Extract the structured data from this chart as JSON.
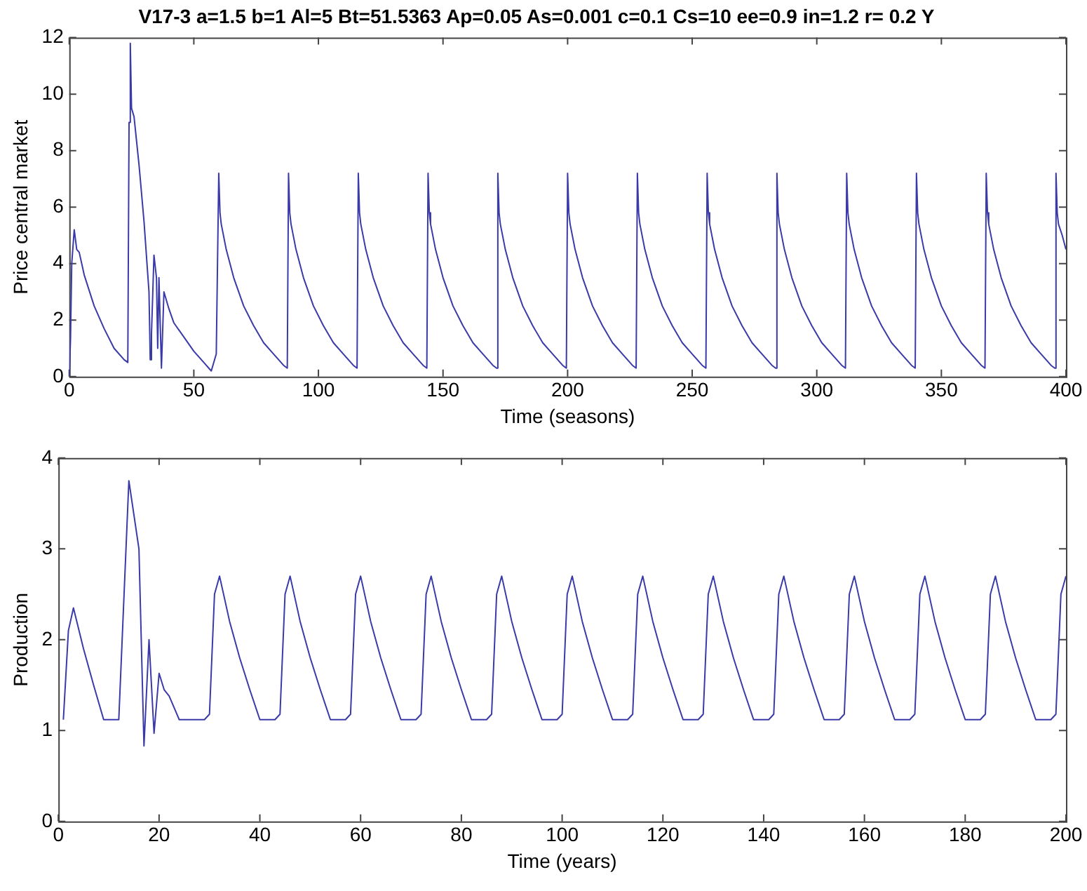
{
  "chart_data": [
    {
      "type": "line",
      "title": "V17-3 a=1.5 b=1 Al=5 Bt=51.5363 Ap=0.05 As=0.001 c=0.1 Cs=10 ee=0.9 in=1.2 r= 0.2 Y",
      "xlabel": "Time (seasons)",
      "ylabel": "Price central market",
      "xlim": [
        0,
        400
      ],
      "ylim": [
        0,
        12
      ],
      "xticks": [
        0,
        50,
        100,
        150,
        200,
        250,
        300,
        350,
        400
      ],
      "yticks": [
        0,
        2,
        4,
        6,
        8,
        10,
        12
      ],
      "grid": false,
      "legend": false,
      "marker": "none",
      "line_style": "solid",
      "series": [
        {
          "color": "#3a3aa8",
          "x": [
            0,
            0.5,
            1,
            2,
            3,
            4,
            6,
            10,
            14,
            18,
            22,
            23.5,
            24,
            24.5,
            25,
            26,
            28,
            30,
            32,
            32.5,
            33,
            34,
            35,
            35.5,
            36,
            37,
            38,
            40,
            42,
            46,
            50,
            54,
            57,
            59,
            60,
            60.5,
            61,
            63,
            66,
            70,
            74,
            78,
            82,
            86,
            87.5,
            88,
            88.5,
            89,
            91,
            94,
            98,
            102,
            106,
            110,
            114,
            115.5,
            116,
            116.5,
            117,
            119,
            122,
            126,
            130,
            134,
            138,
            142,
            143.5,
            144,
            144.5,
            145,
            147,
            150,
            154,
            158,
            162,
            166,
            170,
            171.5,
            172,
            172.5,
            173,
            175,
            178,
            182,
            186,
            190,
            194,
            198,
            199.5,
            200,
            200.5,
            201,
            203,
            206,
            210,
            214,
            218,
            222,
            226,
            227.5,
            228,
            228.5,
            229,
            231,
            234,
            238,
            242,
            246,
            250,
            254,
            255.5,
            256,
            256.5,
            257,
            259,
            262,
            266,
            270,
            274,
            278,
            282,
            283.5,
            284,
            284.5,
            285,
            287,
            290,
            294,
            298,
            302,
            306,
            310,
            311.5,
            312,
            312.5,
            313,
            315,
            318,
            322,
            326,
            330,
            334,
            338,
            339.5,
            340,
            340.5,
            341,
            343,
            346,
            350,
            354,
            358,
            362,
            366,
            367.5,
            368,
            368.5,
            369,
            371,
            374,
            378,
            382,
            386,
            390,
            394,
            395.5,
            396,
            396.5,
            397,
            398.5,
            400
          ],
          "values": [
            0,
            1.3,
            4,
            5.2,
            4.5,
            4.4,
            3.6,
            2.5,
            1.7,
            1,
            0.6,
            0.5,
            9,
            11.8,
            9.5,
            9.2,
            7.5,
            5.5,
            3,
            0.6,
            1.5,
            4.3,
            3.5,
            1,
            3.5,
            0.3,
            3,
            2.4,
            1.9,
            1.4,
            0.9,
            0.5,
            0.2,
            0.8,
            7.2,
            5.8,
            5.4,
            4.5,
            3.5,
            2.5,
            1.8,
            1.2,
            0.8,
            0.4,
            0.3,
            7.2,
            5.8,
            5.4,
            4.5,
            3.5,
            2.5,
            1.8,
            1.2,
            0.8,
            0.4,
            0.3,
            7.2,
            5.8,
            5.4,
            4.5,
            3.5,
            2.5,
            1.8,
            1.2,
            0.8,
            0.4,
            0.3,
            7.2,
            5.8,
            5.4,
            4.5,
            3.5,
            2.5,
            1.8,
            1.2,
            0.8,
            0.4,
            0.3,
            7.2,
            5.8,
            5.4,
            4.5,
            3.5,
            2.5,
            1.8,
            1.2,
            0.8,
            0.4,
            0.3,
            7.2,
            5.8,
            5.4,
            4.5,
            3.5,
            2.5,
            1.8,
            1.2,
            0.8,
            0.4,
            0.3,
            7.2,
            5.8,
            5.4,
            4.5,
            3.5,
            2.5,
            1.8,
            1.2,
            0.8,
            0.4,
            0.3,
            7.2,
            5.8,
            5.4,
            4.5,
            3.5,
            2.5,
            1.8,
            1.2,
            0.8,
            0.4,
            0.3,
            7.2,
            5.8,
            5.4,
            4.5,
            3.5,
            2.5,
            1.8,
            1.2,
            0.8,
            0.4,
            0.3,
            7.2,
            5.8,
            5.4,
            4.5,
            3.5,
            2.5,
            1.8,
            1.2,
            0.8,
            0.4,
            0.3,
            7.2,
            5.8,
            5.4,
            4.5,
            3.5,
            2.5,
            1.8,
            1.2,
            0.8,
            0.4,
            0.3,
            7.2,
            5.8,
            5.4,
            4.5,
            3.5,
            2.5,
            1.8,
            1.2,
            0.8,
            0.4,
            0.3,
            7.2,
            5.8,
            5.4,
            5,
            4.5
          ]
        }
      ]
    },
    {
      "type": "line",
      "xlabel": "Time (years)",
      "ylabel": "Production",
      "xlim": [
        0,
        200
      ],
      "ylim": [
        0,
        4
      ],
      "xticks": [
        0,
        20,
        40,
        60,
        80,
        100,
        120,
        140,
        160,
        180,
        200
      ],
      "yticks": [
        0,
        1,
        2,
        3,
        4
      ],
      "grid": false,
      "legend": false,
      "marker": "none",
      "line_style": "solid",
      "series": [
        {
          "color": "#3a3aa8",
          "x": [
            1,
            2,
            3,
            5,
            7,
            9,
            12,
            14,
            16,
            17,
            18,
            19,
            20,
            21,
            22,
            24,
            29,
            30,
            31,
            32,
            34,
            36,
            38,
            40,
            43,
            44,
            45,
            46,
            48,
            50,
            52,
            54,
            57,
            58,
            59,
            60,
            62,
            64,
            66,
            68,
            71,
            72,
            73,
            74,
            76,
            78,
            80,
            82,
            85,
            86,
            87,
            88,
            90,
            92,
            94,
            96,
            99,
            100,
            101,
            102,
            104,
            106,
            108,
            110,
            113,
            114,
            115,
            116,
            118,
            120,
            122,
            124,
            127,
            128,
            129,
            130,
            132,
            134,
            136,
            138,
            141,
            142,
            143,
            144,
            146,
            148,
            150,
            152,
            155,
            156,
            157,
            158,
            160,
            162,
            164,
            166,
            169,
            170,
            171,
            172,
            174,
            176,
            178,
            180,
            183,
            184,
            185,
            186,
            188,
            190,
            192,
            194,
            197,
            198,
            199,
            200
          ],
          "values": [
            1.12,
            2.1,
            2.35,
            1.9,
            1.5,
            1.12,
            1.12,
            3.75,
            3,
            0.83,
            2,
            0.97,
            1.63,
            1.45,
            1.38,
            1.12,
            1.12,
            1.18,
            2.5,
            2.7,
            2.2,
            1.8,
            1.45,
            1.12,
            1.12,
            1.18,
            2.5,
            2.7,
            2.2,
            1.8,
            1.45,
            1.12,
            1.12,
            1.18,
            2.5,
            2.7,
            2.2,
            1.8,
            1.45,
            1.12,
            1.12,
            1.18,
            2.5,
            2.7,
            2.2,
            1.8,
            1.45,
            1.12,
            1.12,
            1.18,
            2.5,
            2.7,
            2.2,
            1.8,
            1.45,
            1.12,
            1.12,
            1.18,
            2.5,
            2.7,
            2.2,
            1.8,
            1.45,
            1.12,
            1.12,
            1.18,
            2.5,
            2.7,
            2.2,
            1.8,
            1.45,
            1.12,
            1.12,
            1.18,
            2.5,
            2.7,
            2.2,
            1.8,
            1.45,
            1.12,
            1.12,
            1.18,
            2.5,
            2.7,
            2.2,
            1.8,
            1.45,
            1.12,
            1.12,
            1.18,
            2.5,
            2.7,
            2.2,
            1.8,
            1.45,
            1.12,
            1.12,
            1.18,
            2.5,
            2.7,
            2.2,
            1.8,
            1.45,
            1.12,
            1.12,
            1.18,
            2.5,
            2.7,
            2.2,
            1.8,
            1.45,
            1.12,
            1.12,
            1.18,
            2.5,
            2.7
          ]
        }
      ]
    }
  ]
}
